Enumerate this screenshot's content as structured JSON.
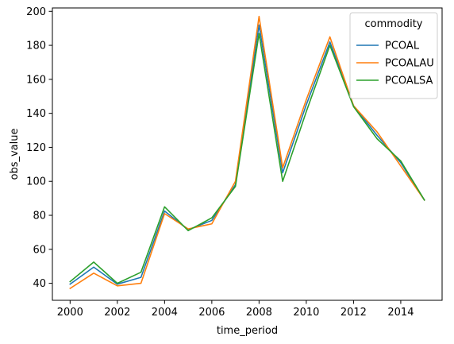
{
  "chart_data": {
    "type": "line",
    "title": "",
    "xlabel": "time_period",
    "ylabel": "obs_value",
    "xlim": [
      1999.25,
      2015.75
    ],
    "ylim": [
      30,
      202
    ],
    "xticks": [
      2000,
      2002,
      2004,
      2006,
      2008,
      2010,
      2012,
      2014
    ],
    "yticks": [
      40,
      60,
      80,
      100,
      120,
      140,
      160,
      180,
      200
    ],
    "grid": false,
    "legend": {
      "title": "commodity",
      "placement": "top-right"
    },
    "x": [
      2000,
      2001,
      2002,
      2003,
      2004,
      2005,
      2006,
      2007,
      2008,
      2009,
      2010,
      2011,
      2012,
      2013,
      2014,
      2015
    ],
    "series": [
      {
        "name": "PCOAL",
        "color": "#1f77b4",
        "values": [
          39.5,
          49.5,
          39.5,
          43.5,
          82.5,
          71.5,
          77,
          98,
          192,
          105,
          145,
          182,
          144.5,
          127,
          111,
          89
        ]
      },
      {
        "name": "PCOALAU",
        "color": "#ff7f0e",
        "values": [
          37,
          46,
          38.5,
          40,
          81,
          72,
          75,
          100,
          197,
          108,
          148,
          185,
          144.5,
          129,
          109,
          89
        ]
      },
      {
        "name": "PCOALSA",
        "color": "#2ca02c",
        "values": [
          41,
          52.5,
          40,
          46.5,
          85,
          71,
          78.5,
          97,
          187,
          100,
          141,
          180,
          144,
          125,
          112,
          89
        ]
      }
    ]
  }
}
